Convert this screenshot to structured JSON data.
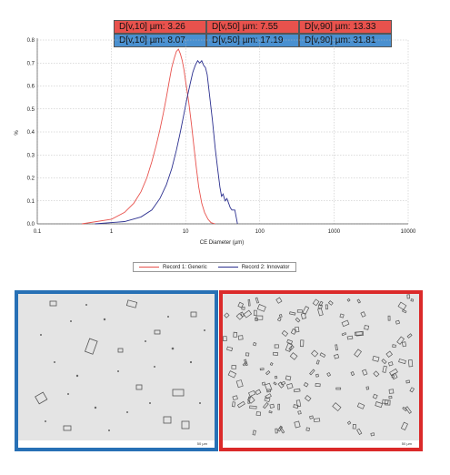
{
  "stats": {
    "generic": [
      "D[v,10] µm: 3.26",
      "D[v,50] µm: 7.55",
      "D[v,90] µm: 13.33"
    ],
    "innovator": [
      "D[v,10] µm: 8.07",
      "D[v,50] µm: 17.19",
      "D[v,90] µm: 31.81"
    ]
  },
  "colors": {
    "generic": "#e8524d",
    "innovator": "#2b2f8f",
    "innovator_box": "#2770b5",
    "generic_box": "#db2a2a"
  },
  "chart_data": {
    "type": "line",
    "xlabel": "CE Diameter (µm)",
    "ylabel": "%",
    "xscale": "log",
    "xlim": [
      0.1,
      10000
    ],
    "ylim": [
      0,
      0.8
    ],
    "xticks": [
      "0.1",
      "1",
      "10",
      "100",
      "1000",
      "10000"
    ],
    "yticks": [
      "0.0",
      "0.1",
      "0.2",
      "0.3",
      "0.4",
      "0.5",
      "0.6",
      "0.7",
      "0.8"
    ],
    "grid": true,
    "legend_position": "bottom",
    "series": [
      {
        "name": "Record 1: Generic",
        "x": [
          0.4,
          1.0,
          1.5,
          2.0,
          2.5,
          3.0,
          3.5,
          4.0,
          4.5,
          5.0,
          5.5,
          6.0,
          6.5,
          7.0,
          7.5,
          8.0,
          8.5,
          9.0,
          9.5,
          10.0,
          11.0,
          12.0,
          13.0,
          14.0,
          15.0,
          16.5,
          18.0,
          20.0,
          22.0,
          25.0
        ],
        "y": [
          0.0,
          0.02,
          0.05,
          0.09,
          0.14,
          0.2,
          0.27,
          0.34,
          0.41,
          0.48,
          0.55,
          0.62,
          0.68,
          0.72,
          0.75,
          0.76,
          0.74,
          0.71,
          0.67,
          0.62,
          0.53,
          0.43,
          0.33,
          0.24,
          0.16,
          0.09,
          0.05,
          0.02,
          0.005,
          0.0
        ]
      },
      {
        "name": "Record 2: Innovator",
        "x": [
          0.6,
          1.5,
          2.5,
          3.5,
          4.5,
          5.5,
          6.5,
          7.5,
          8.5,
          9.5,
          10.5,
          11.5,
          12.5,
          13.5,
          14.5,
          15.5,
          16.5,
          17.5,
          18.5,
          19.5,
          21.0,
          23.0,
          25.0,
          27.0,
          29.0,
          30.5,
          32.0,
          34.0,
          36.0,
          38.0,
          40.0,
          42.0,
          44.0,
          46.0,
          48.0,
          50.0
        ],
        "y": [
          0.0,
          0.01,
          0.03,
          0.06,
          0.11,
          0.17,
          0.24,
          0.32,
          0.4,
          0.48,
          0.55,
          0.61,
          0.66,
          0.69,
          0.71,
          0.7,
          0.71,
          0.69,
          0.68,
          0.65,
          0.56,
          0.45,
          0.33,
          0.24,
          0.16,
          0.12,
          0.13,
          0.1,
          0.11,
          0.09,
          0.07,
          0.06,
          0.06,
          0.06,
          0.03,
          0.0
        ]
      }
    ]
  },
  "micrographs": {
    "left_scale": "50 µm",
    "right_scale": "50 µm"
  }
}
